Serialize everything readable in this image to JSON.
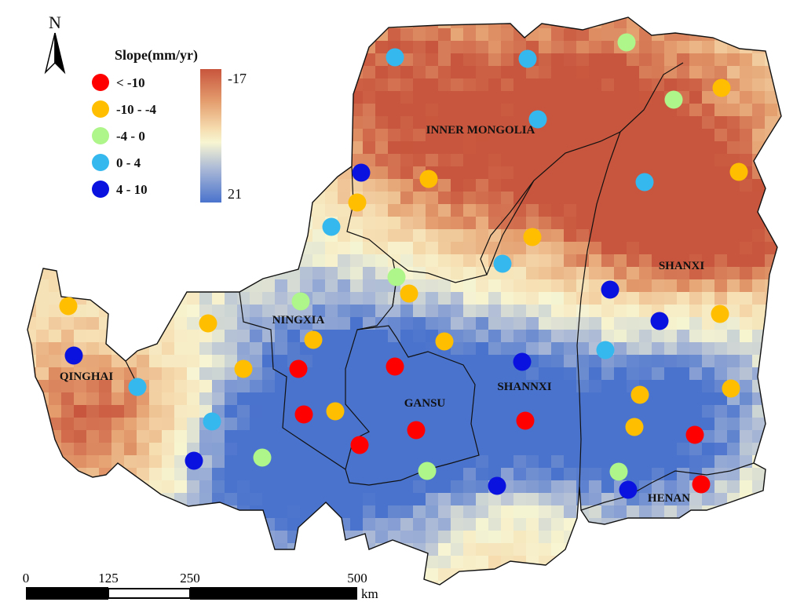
{
  "north_arrow": {
    "label": "N"
  },
  "legend": {
    "title": "Slope(mm/yr)",
    "classes": [
      {
        "label": "< -10",
        "color": "#ff0000"
      },
      {
        "label": "-10 - -4",
        "color": "#ffbf00"
      },
      {
        "label": "-4 - 0",
        "color": "#aef58a"
      },
      {
        "label": "0 - 4",
        "color": "#35b8ee"
      },
      {
        "label": "4 - 10",
        "color": "#0a12e0"
      }
    ],
    "ramp": {
      "max_label": "-17",
      "min_label": "21",
      "colors": [
        "#c8553d",
        "#e5a070",
        "#f6ddb0",
        "#f7f5d2",
        "#a9b8d6",
        "#4a73cd"
      ]
    }
  },
  "regions": [
    {
      "name": "INNER MONGOLIA"
    },
    {
      "name": "SHANXI"
    },
    {
      "name": "NINGXIA"
    },
    {
      "name": "QINGHAI"
    },
    {
      "name": "GANSU"
    },
    {
      "name": "SHANNXI"
    },
    {
      "name": "HENAN"
    }
  ],
  "scale_bar": {
    "ticks": [
      "0",
      "125",
      "250",
      "500"
    ],
    "unit": "km"
  }
}
